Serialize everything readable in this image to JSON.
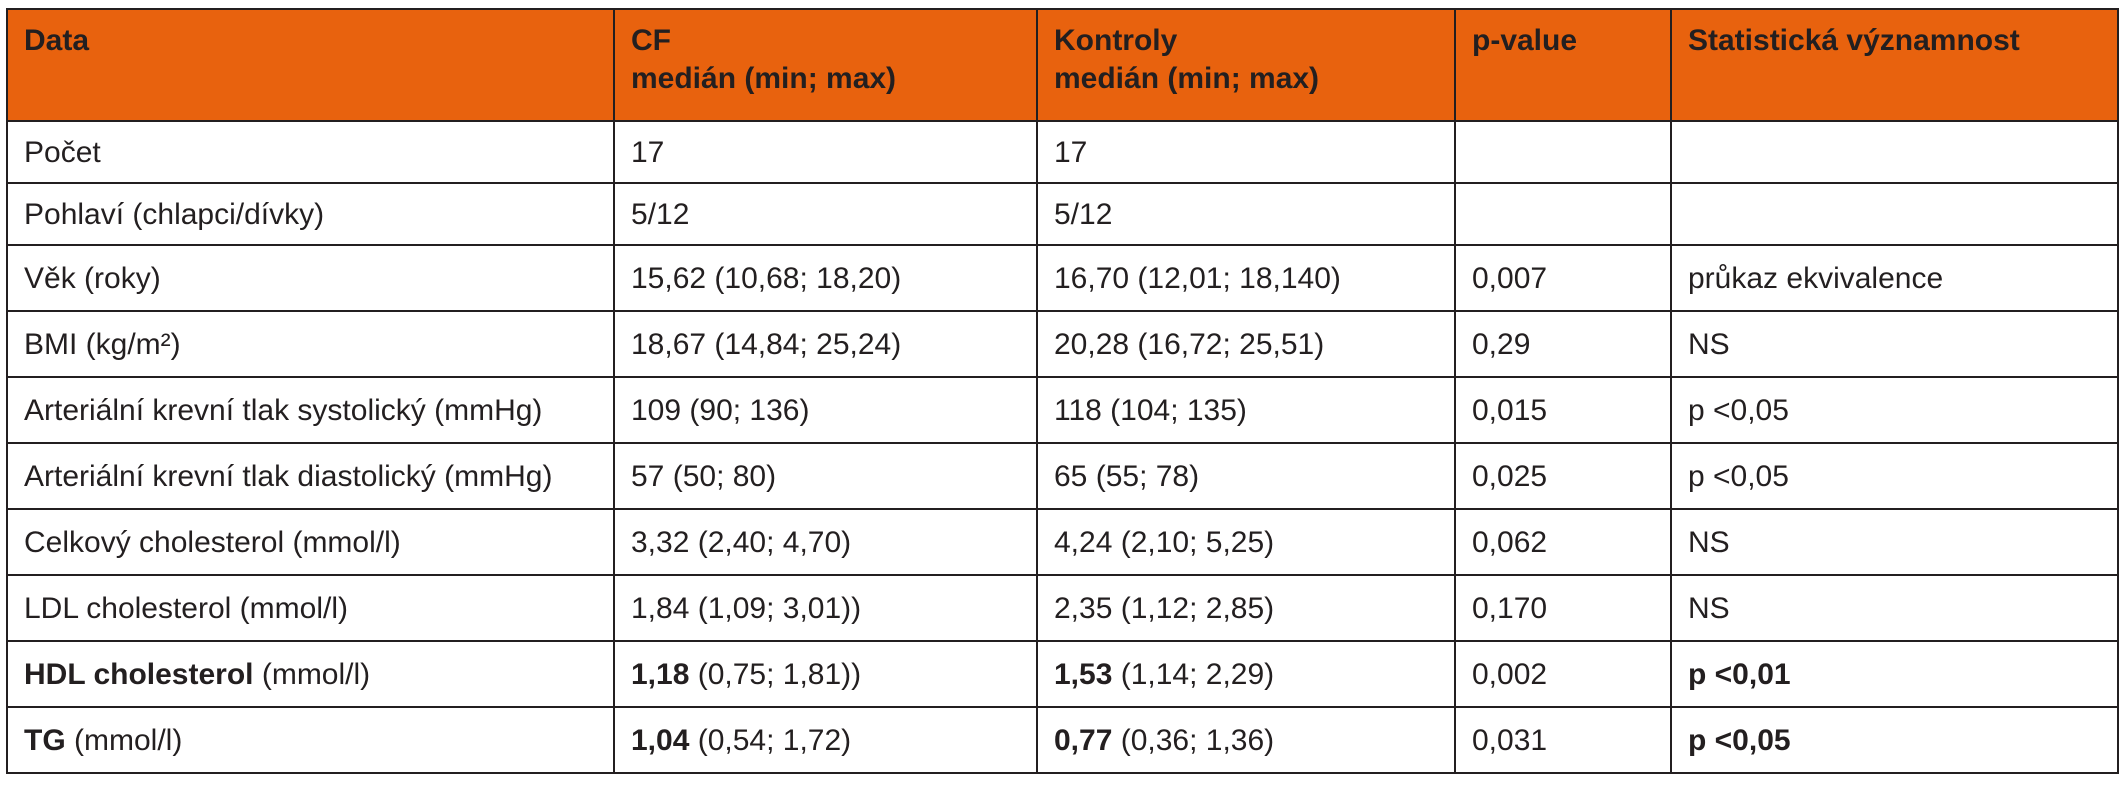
{
  "header": {
    "col1": "Data",
    "col2_line1": "CF",
    "col2_line2": "medián (min; max)",
    "col3_line1": "Kontroly",
    "col3_line2": "medián (min; max)",
    "col4": "p-value",
    "col5": "Statistická významnost"
  },
  "rows": [
    {
      "label": "Počet",
      "label_unit": "",
      "cf_bold": "",
      "cf": "17",
      "ctrl_bold": "",
      "ctrl": "17",
      "p": "",
      "sig": ""
    },
    {
      "label": "Pohlaví (chlapci/dívky)",
      "label_unit": "",
      "cf_bold": "",
      "cf": "5/12",
      "ctrl_bold": "",
      "ctrl": "5/12",
      "p": "",
      "sig": ""
    },
    {
      "label": "Věk (roky)",
      "label_unit": "",
      "cf_bold": "",
      "cf": "15,62 (10,68; 18,20)",
      "ctrl_bold": "",
      "ctrl": "16,70 (12,01; 18,140)",
      "p": "0,007",
      "sig": "průkaz ekvivalence"
    },
    {
      "label": "BMI (kg/m²)",
      "label_unit": "",
      "cf_bold": "",
      "cf": "18,67 (14,84; 25,24)",
      "ctrl_bold": "",
      "ctrl": "20,28 (16,72; 25,51)",
      "p": "0,29",
      "sig": "NS"
    },
    {
      "label": "Arteriální krevní tlak systolický (mmHg)",
      "label_unit": "",
      "cf_bold": "",
      "cf": "109 (90; 136)",
      "ctrl_bold": "",
      "ctrl": "118 (104; 135)",
      "p": "0,015",
      "sig": "p <0,05"
    },
    {
      "label": "Arteriální krevní tlak diastolický (mmHg)",
      "label_unit": "",
      "cf_bold": "",
      "cf": "57 (50; 80)",
      "ctrl_bold": "",
      "ctrl": "65 (55; 78)",
      "p": "0,025",
      "sig": "p <0,05"
    },
    {
      "label": "Celkový cholesterol (mmol/l)",
      "label_unit": "",
      "cf_bold": "",
      "cf": "3,32 (2,40; 4,70)",
      "ctrl_bold": "",
      "ctrl": "4,24 (2,10; 5,25)",
      "p": "0,062",
      "sig": "NS"
    },
    {
      "label": "LDL cholesterol (mmol/l)",
      "label_unit": "",
      "cf_bold": "",
      "cf": "1,84 (1,09; 3,01))",
      "ctrl_bold": "",
      "ctrl": "2,35 (1,12; 2,85)",
      "p": "0,170",
      "sig": "NS"
    },
    {
      "label_bold": "HDL cholesterol",
      "label_unit": " (mmol/l)",
      "cf_bold": "1,18",
      "cf": " (0,75; 1,81))",
      "ctrl_bold": "1,53",
      "ctrl": " (1,14; 2,29)",
      "p": "0,002",
      "sig_bold": "p <0,01"
    },
    {
      "label_bold": "TG",
      "label_unit": " (mmol/l)",
      "cf_bold": "1,04",
      "cf": " (0,54; 1,72)",
      "ctrl_bold": "0,77",
      "ctrl": " (0,36; 1,36)",
      "p": "0,031",
      "sig_bold": "p <0,05"
    }
  ],
  "colors": {
    "header_bg": "#e8620e",
    "border": "#231f20",
    "text": "#231f20"
  }
}
